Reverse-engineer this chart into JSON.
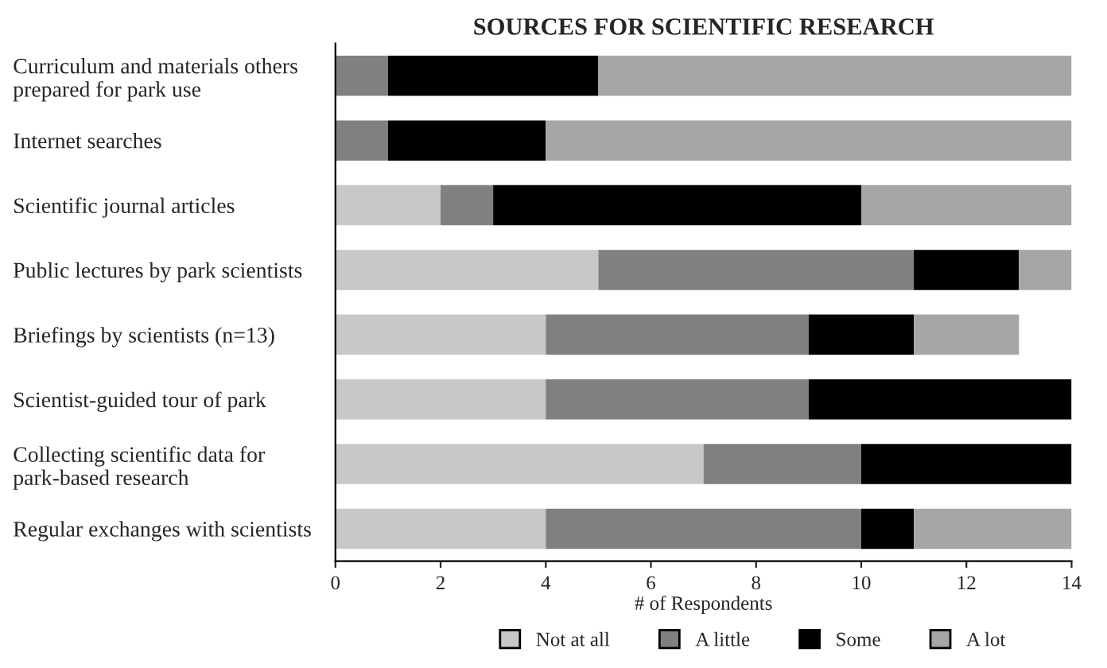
{
  "chart_data": {
    "type": "bar",
    "orientation": "horizontal",
    "stacked": true,
    "title": "SOURCES FOR SCIENTIFIC RESEARCH",
    "xlabel": "# of Respondents",
    "categories": [
      "Curriculum and materials others\nprepared for park use",
      "Internet searches",
      "Scientific journal articles",
      "Public lectures by park scientists",
      "Briefings by scientists (n=13)",
      "Scientist-guided tour of park",
      "Collecting scientific data for\npark-based research",
      "Regular exchanges with scientists"
    ],
    "series": [
      {
        "name": "Not at all",
        "color": "#c8c8c8",
        "values": [
          0,
          0,
          2,
          5,
          4,
          4,
          7,
          4
        ]
      },
      {
        "name": "A little",
        "color": "#808080",
        "values": [
          1,
          1,
          1,
          6,
          5,
          5,
          3,
          6
        ]
      },
      {
        "name": "Some",
        "color": "#000000",
        "values": [
          4,
          3,
          7,
          2,
          2,
          5,
          4,
          1
        ]
      },
      {
        "name": "A lot",
        "color": "#a6a6a6",
        "values": [
          9,
          10,
          4,
          1,
          2,
          0,
          0,
          3
        ]
      }
    ],
    "xlim": [
      0,
      14
    ],
    "xticks": [
      0,
      2,
      4,
      6,
      8,
      10,
      12,
      14
    ],
    "grid": false,
    "legend": "bottom"
  }
}
